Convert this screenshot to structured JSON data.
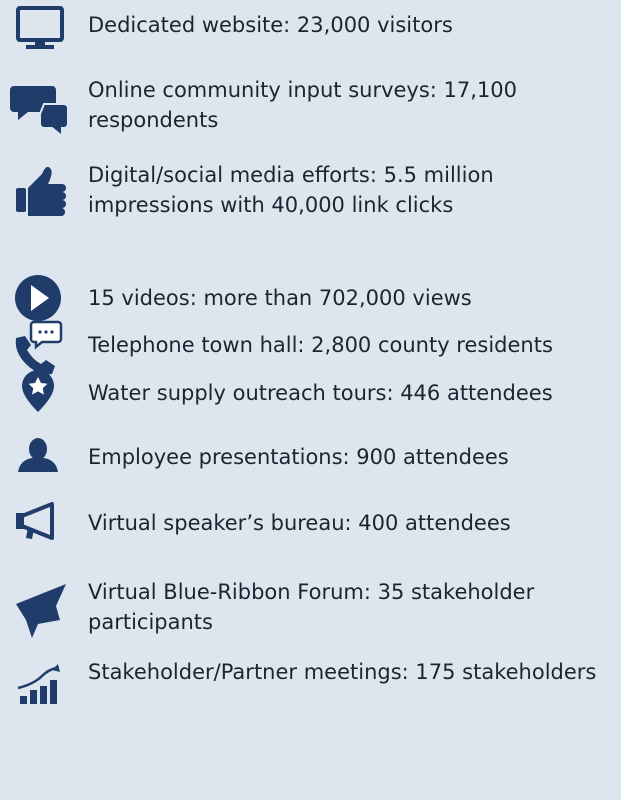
{
  "items": [
    "Dedicated website: 23,000 visitors",
    "Online community input surveys: 17,100 respondents",
    "Digital/social media efforts: 5.5 million impressions with 40,000 link clicks",
    "15 videos: more than 702,000 views",
    "Telephone town hall: 2,800 county residents",
    "Water supply outreach tours: 446 attendees",
    "Employee presentations: 900 attendees",
    "Virtual speaker’s bureau: 400 attendees",
    "Virtual Blue-Ribbon Forum: 35 stakeholder participants",
    "Stakeholder/Partner meetings: 175 stakeholders"
  ]
}
